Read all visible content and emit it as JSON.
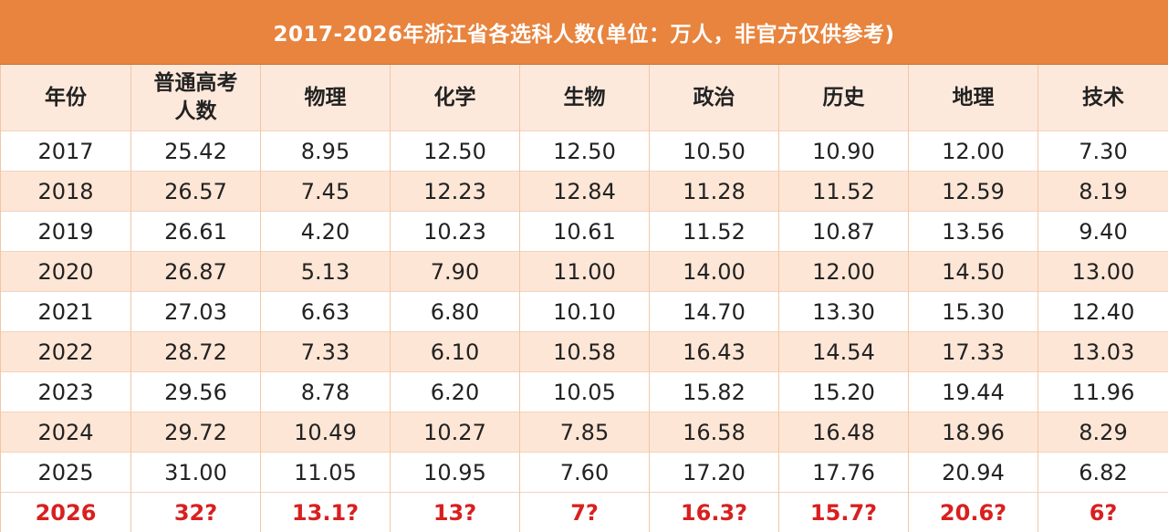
{
  "title": "2017-2026年浙江省各选科人数(单位：万人，非官方仅供参考)",
  "headers": [
    "年份",
    "普通高考人数",
    "物理",
    "化学",
    "生物",
    "政治",
    "历史",
    "地理",
    "技术"
  ],
  "header_lines": {
    "gaokao_line1": "普通高考",
    "gaokao_line2": "人数"
  },
  "rows": [
    [
      "2017",
      "25.42",
      "8.95",
      "12.50",
      "12.50",
      "10.50",
      "10.90",
      "12.00",
      "7.30"
    ],
    [
      "2018",
      "26.57",
      "7.45",
      "12.23",
      "12.84",
      "11.28",
      "11.52",
      "12.59",
      "8.19"
    ],
    [
      "2019",
      "26.61",
      "4.20",
      "10.23",
      "10.61",
      "11.52",
      "10.87",
      "13.56",
      "9.40"
    ],
    [
      "2020",
      "26.87",
      "5.13",
      "7.90",
      "11.00",
      "14.00",
      "12.00",
      "14.50",
      "13.00"
    ],
    [
      "2021",
      "27.03",
      "6.63",
      "6.80",
      "10.10",
      "14.70",
      "13.30",
      "15.30",
      "12.40"
    ],
    [
      "2022",
      "28.72",
      "7.33",
      "6.10",
      "10.58",
      "16.43",
      "14.54",
      "17.33",
      "13.03"
    ],
    [
      "2023",
      "29.56",
      "8.78",
      "6.20",
      "10.05",
      "15.82",
      "15.20",
      "19.44",
      "11.96"
    ],
    [
      "2024",
      "29.72",
      "10.49",
      "10.27",
      "7.85",
      "16.58",
      "16.48",
      "18.96",
      "8.29"
    ],
    [
      "2025",
      "31.00",
      "11.05",
      "10.95",
      "7.60",
      "17.20",
      "17.76",
      "20.94",
      "6.82"
    ],
    [
      "2026",
      "32?",
      "13.1?",
      "13?",
      "7?",
      "16.3?",
      "15.7?",
      "20.6?",
      "6?"
    ]
  ],
  "colors": {
    "title_bg": "#e8843e",
    "highlight_text": "#d8201f",
    "stripe": "#fde6d6"
  }
}
